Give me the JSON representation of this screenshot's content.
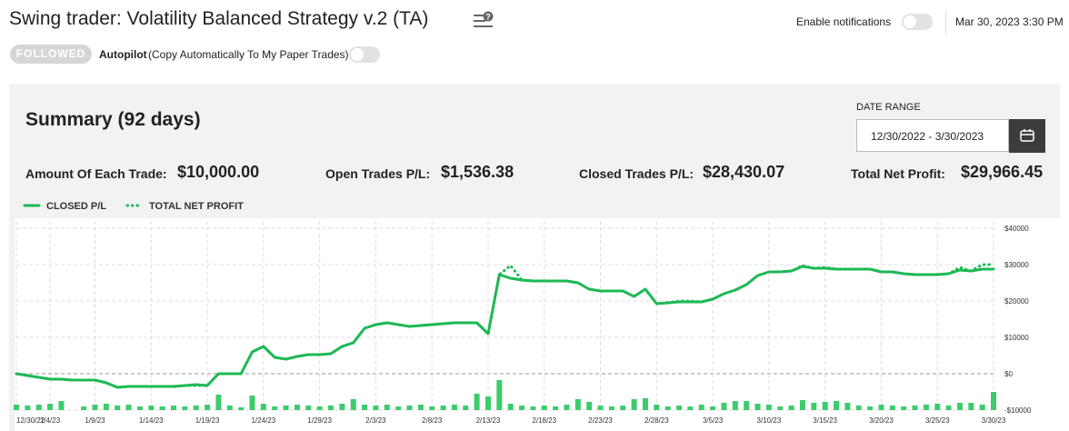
{
  "header": {
    "title": "Swing trader: Volatility Balanced Strategy v.2 (TA)",
    "notifications_label": "Enable notifications",
    "datetime": "Mar 30, 2023 3:30 PM",
    "followed": "FOLLOWED",
    "autopilot": "Autopilot",
    "autopilot_note": "(Copy Automatically To My Paper Trades)"
  },
  "summary": {
    "title": "Summary (92 days)",
    "date_range_label": "DATE RANGE",
    "date_range": "12/30/2022 - 3/30/2023",
    "stats": [
      {
        "label": "Amount Of Each Trade:",
        "value": "$10,000.00"
      },
      {
        "label": "Open Trades P/L:",
        "value": "$1,536.38"
      },
      {
        "label": "Closed Trades P/L:",
        "value": "$28,430.07"
      },
      {
        "label": "Total Net Profit:",
        "value": "$29,966.45"
      }
    ]
  },
  "chart_data": {
    "type": "line",
    "categories": [
      "12/30/22",
      null,
      null,
      "1/4/23",
      null,
      null,
      null,
      "1/9/23",
      null,
      null,
      null,
      null,
      "1/14/23",
      null,
      null,
      null,
      null,
      "1/19/23",
      null,
      null,
      null,
      null,
      "1/24/23",
      null,
      null,
      null,
      null,
      "1/29/23",
      null,
      null,
      null,
      null,
      "2/3/23",
      null,
      null,
      null,
      null,
      "2/8/23",
      null,
      null,
      null,
      null,
      "2/13/23",
      null,
      null,
      null,
      null,
      "2/18/23",
      null,
      null,
      null,
      null,
      "2/23/23",
      null,
      null,
      null,
      null,
      "2/28/23",
      null,
      null,
      null,
      null,
      "3/5/23",
      null,
      null,
      null,
      null,
      "3/10/23",
      null,
      null,
      null,
      null,
      "3/15/23",
      null,
      null,
      null,
      null,
      "3/20/23",
      null,
      null,
      null,
      null,
      "3/25/23",
      null,
      null,
      null,
      null,
      "3/30/23"
    ],
    "series": [
      {
        "name": "CLOSED P/L",
        "color": "#1db954",
        "style": "solid",
        "values": [
          0,
          -500,
          -1000,
          -1500,
          -1500,
          -1750,
          -1750,
          -1750,
          -2500,
          -3750,
          -3500,
          -3500,
          -3500,
          -3500,
          -3500,
          -3250,
          -3000,
          -3250,
          0,
          0,
          0,
          6000,
          7500,
          4500,
          4000,
          4750,
          5250,
          5250,
          5500,
          7500,
          8500,
          12500,
          13500,
          14000,
          13500,
          13000,
          13250,
          13500,
          13750,
          14000,
          14000,
          14000,
          11000,
          27250,
          26250,
          25750,
          25500,
          25500,
          25500,
          25500,
          25000,
          23250,
          22750,
          22750,
          22750,
          21250,
          23250,
          19250,
          19500,
          19750,
          19750,
          19750,
          20500,
          22000,
          23000,
          24500,
          27000,
          28000,
          28000,
          28250,
          29500,
          29000,
          29000,
          28750,
          28750,
          28750,
          28750,
          28000,
          28000,
          27500,
          27250,
          27250,
          27250,
          27500,
          28500,
          28250,
          28750,
          28750
        ]
      },
      {
        "name": "TOTAL NET PROFIT",
        "color": "#1db954",
        "style": "dotted",
        "values": [
          0,
          -500,
          -1000,
          -1500,
          -1500,
          -1750,
          -1750,
          -1750,
          -2500,
          -3750,
          -3500,
          -3500,
          -3500,
          -3500,
          -3500,
          -3250,
          -3250,
          -3250,
          0,
          0,
          0,
          6000,
          7500,
          4500,
          4000,
          4750,
          5250,
          5250,
          5500,
          7500,
          8500,
          12500,
          13500,
          14000,
          13500,
          13000,
          13250,
          13500,
          13750,
          14000,
          14000,
          14000,
          11000,
          27250,
          29750,
          25750,
          25500,
          25500,
          25500,
          25500,
          25000,
          23250,
          22750,
          22750,
          22750,
          21250,
          23250,
          19250,
          19500,
          20000,
          20000,
          19750,
          20500,
          22000,
          23000,
          24500,
          27000,
          28000,
          28000,
          28250,
          29750,
          29000,
          29250,
          28750,
          28750,
          28750,
          28750,
          28000,
          28000,
          27500,
          27250,
          27250,
          27250,
          27500,
          29250,
          28250,
          30000,
          30000
        ]
      }
    ],
    "bars": {
      "color": "#3ccc6c",
      "values": [
        1500,
        1250,
        1500,
        1750,
        2500,
        0,
        1000,
        1500,
        1750,
        1250,
        1500,
        1000,
        1250,
        1000,
        1250,
        1000,
        1250,
        1500,
        4250,
        1250,
        750,
        4000,
        1750,
        1000,
        1250,
        1500,
        1250,
        1000,
        1250,
        1750,
        3000,
        1500,
        1250,
        1500,
        1000,
        1250,
        1500,
        1000,
        1250,
        1500,
        1250,
        4500,
        3750,
        8250,
        1750,
        1250,
        1000,
        1250,
        1000,
        1500,
        3000,
        2250,
        1250,
        1000,
        1250,
        3000,
        3250,
        1500,
        1000,
        1250,
        1000,
        1500,
        1000,
        2000,
        2500,
        2500,
        1750,
        1500,
        1000,
        1250,
        2750,
        2000,
        2250,
        2500,
        2000,
        1250,
        1000,
        1500,
        1250,
        1000,
        1250,
        1500,
        1750,
        1250,
        2000,
        2000,
        1500,
        5000
      ]
    },
    "ylim": [
      -10000,
      40000
    ],
    "yticks": [
      {
        "value": -10000,
        "label": "-$10000"
      },
      {
        "value": 0,
        "label": "$0"
      },
      {
        "value": 10000,
        "label": "$10000"
      },
      {
        "value": 20000,
        "label": "$20000"
      },
      {
        "value": 30000,
        "label": "$30000"
      },
      {
        "value": 40000,
        "label": "$40000"
      }
    ],
    "grid": true
  }
}
